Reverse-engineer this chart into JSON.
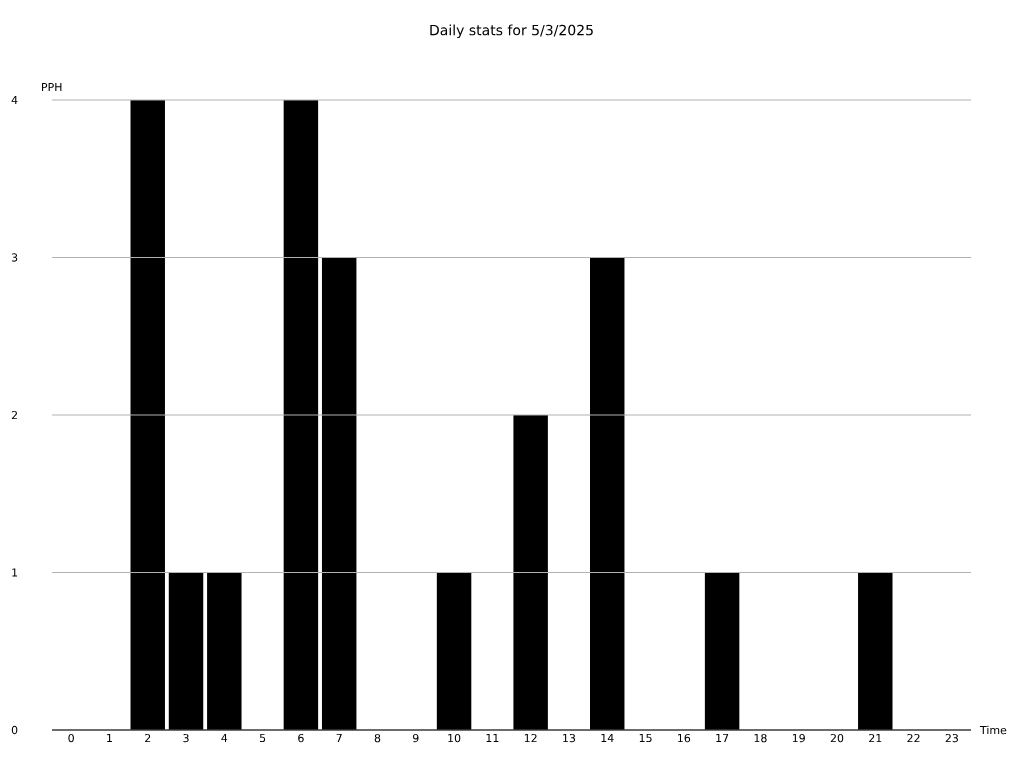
{
  "chart_data": {
    "type": "bar",
    "title": "Daily stats for 5/3/2025",
    "xlabel": "Time",
    "ylabel": "PPH",
    "categories": [
      "0",
      "1",
      "2",
      "3",
      "4",
      "5",
      "6",
      "7",
      "8",
      "9",
      "10",
      "11",
      "12",
      "13",
      "14",
      "15",
      "16",
      "17",
      "18",
      "19",
      "20",
      "21",
      "22",
      "23"
    ],
    "values": [
      0,
      0,
      4,
      1,
      1,
      0,
      4,
      3,
      0,
      0,
      1,
      0,
      2,
      0,
      3,
      0,
      0,
      1,
      0,
      0,
      0,
      1,
      0,
      0
    ],
    "color": "#000000",
    "ylim": [
      0,
      4
    ],
    "yticks": [
      0,
      1,
      2,
      3,
      4
    ],
    "grid": "y"
  }
}
